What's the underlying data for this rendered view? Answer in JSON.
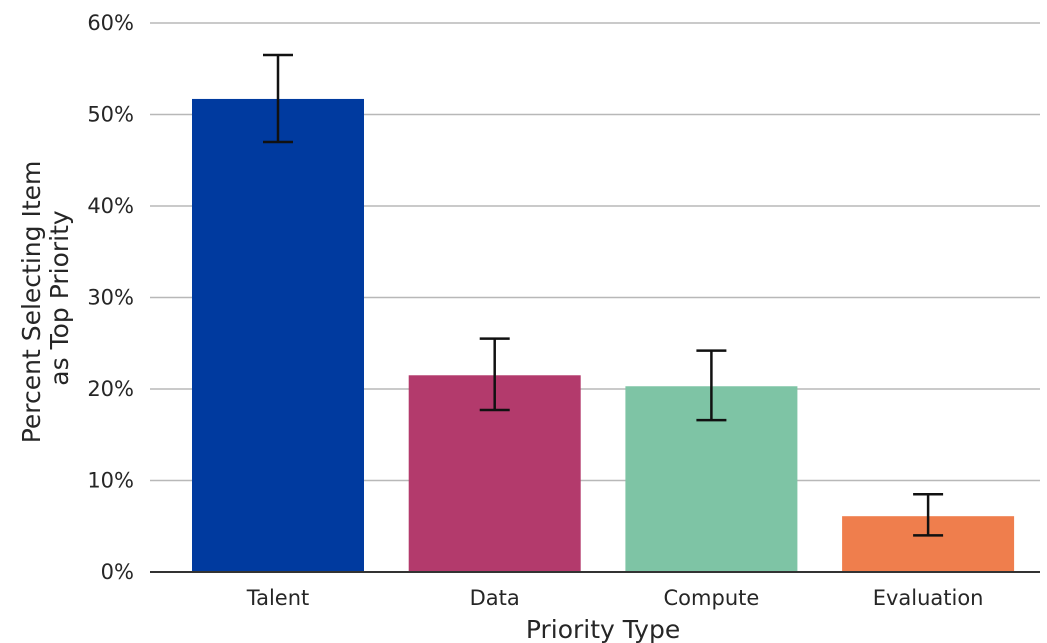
{
  "chart_data": {
    "type": "bar",
    "categories": [
      "Talent",
      "Data",
      "Compute",
      "Evaluation"
    ],
    "values": [
      51.7,
      21.5,
      20.3,
      6.1
    ],
    "error_low": [
      47.0,
      17.7,
      16.6,
      4.0
    ],
    "error_high": [
      56.5,
      25.5,
      24.2,
      8.5
    ],
    "colors": [
      "#003a9f",
      "#b33a6c",
      "#7ec4a5",
      "#ef7e4d"
    ],
    "title": "",
    "xlabel": "Priority Type",
    "ylabel_lines": [
      "Percent Selecting Item",
      "as Top Priority"
    ],
    "ylim": [
      0,
      60
    ],
    "yticks": [
      0,
      10,
      20,
      30,
      40,
      50,
      60
    ],
    "ytick_labels": [
      "0%",
      "10%",
      "20%",
      "30%",
      "40%",
      "50%",
      "60%"
    ],
    "grid": true,
    "legend": false
  }
}
